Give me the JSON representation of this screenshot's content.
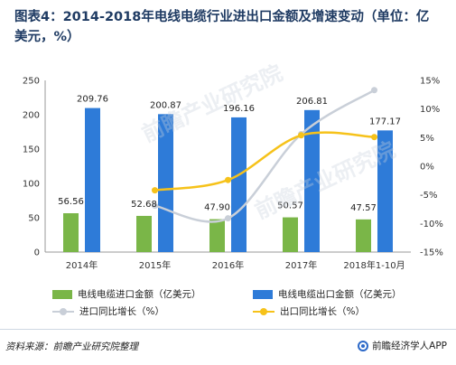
{
  "title": "图表4：2014-2018年电线电缆行业进出口金额及增速变动（单位：亿美元，%）",
  "chart_data": {
    "type": "bar",
    "categories": [
      "2014年",
      "2015年",
      "2016年",
      "2017年",
      "2018年1-10月"
    ],
    "series": [
      {
        "name": "电线电缆进口金额（亿美元）",
        "kind": "bar",
        "axis": "left",
        "color": "#7ab648",
        "values": [
          56.56,
          52.68,
          47.9,
          50.57,
          47.57
        ]
      },
      {
        "name": "电线电缆出口金额（亿美元）",
        "kind": "bar",
        "axis": "left",
        "color": "#2e7bd8",
        "values": [
          209.76,
          200.87,
          196.16,
          206.81,
          177.17
        ]
      },
      {
        "name": "进口同比增长（%）",
        "kind": "line",
        "axis": "right",
        "color": "#c9cfd8",
        "values": [
          null,
          -6.9,
          -9.1,
          5.6,
          13.3
        ]
      },
      {
        "name": "出口同比增长（%）",
        "kind": "line",
        "axis": "right",
        "color": "#f6c21a",
        "values": [
          null,
          -4.2,
          -2.4,
          5.4,
          5.1
        ]
      }
    ],
    "ylim_left": [
      0,
      250
    ],
    "yticks_left": [
      "0",
      "50",
      "100",
      "150",
      "200",
      "250"
    ],
    "ylim_right": [
      -15,
      15
    ],
    "yticks_right": [
      "-15%",
      "-10%",
      "-5%",
      "0%",
      "5%",
      "10%",
      "15%"
    ],
    "legend_position": "bottom",
    "grid": false
  },
  "source": "资料来源：前瞻产业研究院整理",
  "brand": "前瞻经济学人APP",
  "watermark": "前瞻产业研究院"
}
